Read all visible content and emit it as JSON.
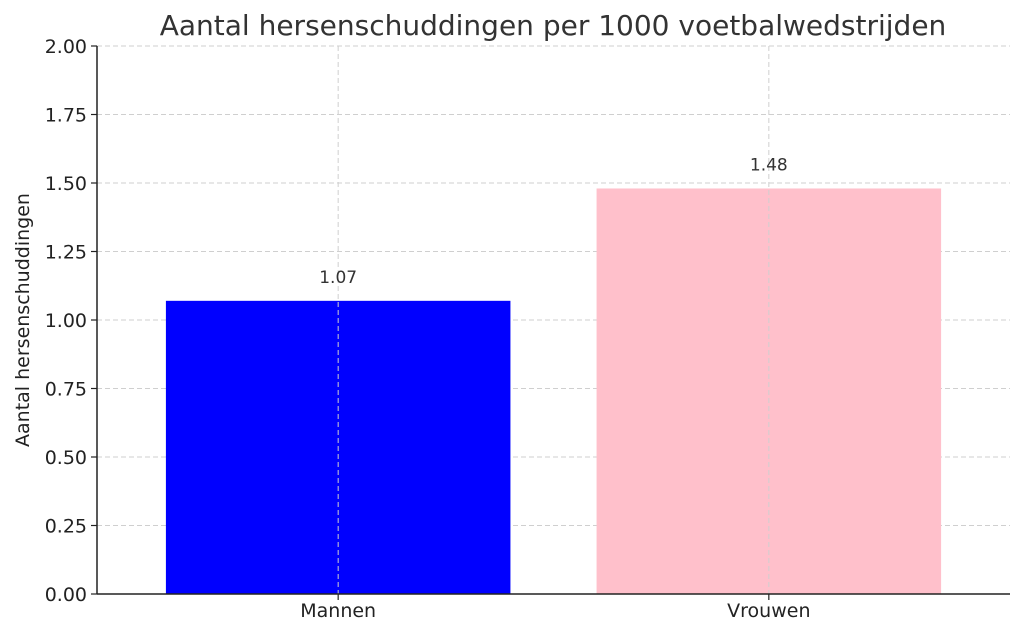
{
  "chart_data": {
    "type": "bar",
    "title": "Aantal hersenschuddingen per 1000 voetbalwedstrijden",
    "xlabel": "",
    "ylabel": "Aantal hersenschuddingen",
    "categories": [
      "Mannen",
      "Vrouwen"
    ],
    "values": [
      1.07,
      1.48
    ],
    "data_labels": [
      "1.07",
      "1.48"
    ],
    "colors": [
      "#0000ff",
      "#ffc0cb"
    ],
    "ylim": [
      0,
      2
    ],
    "yticks": [
      0,
      0.25,
      0.5,
      0.75,
      1.0,
      1.25,
      1.5,
      1.75,
      2.0
    ],
    "ytick_labels": [
      "0.00",
      "0.25",
      "0.50",
      "0.75",
      "1.00",
      "1.25",
      "1.50",
      "1.75",
      "2.00"
    ],
    "grid": true
  }
}
